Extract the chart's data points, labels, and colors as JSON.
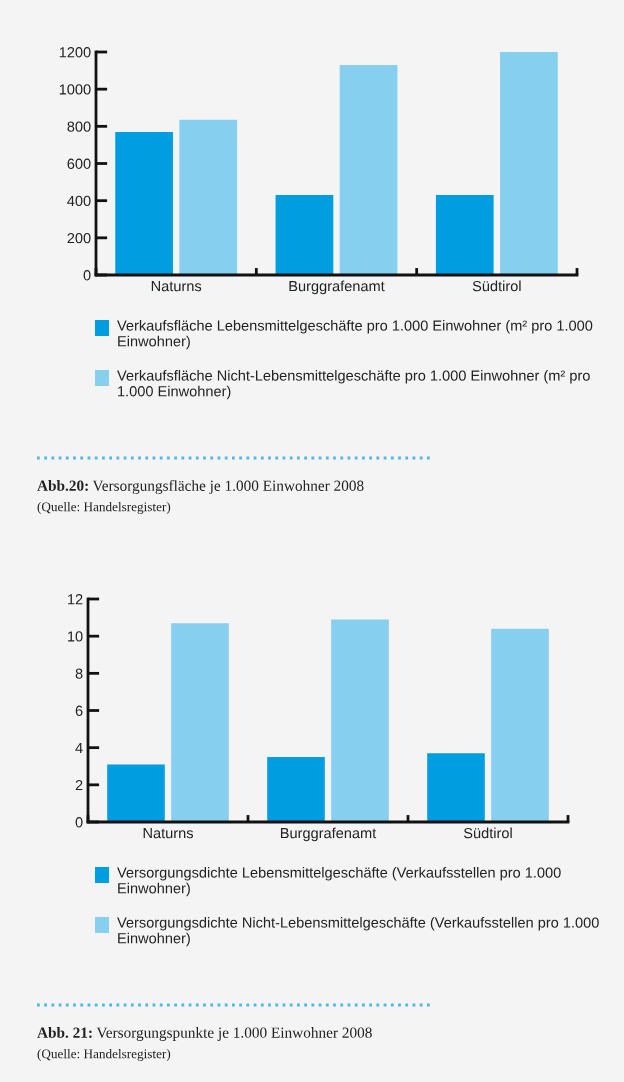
{
  "chart_data": [
    {
      "type": "bar",
      "categories": [
        "Naturns",
        "Burggrafenamt",
        "Südtirol"
      ],
      "series": [
        {
          "name": "Verkaufsfläche Lebensmittelgeschäfte pro 1.000 Einwohner (m² pro 1.000 Einwohner)",
          "color": "#009ee0",
          "values": [
            770,
            430,
            430
          ]
        },
        {
          "name": "Verkaufsfläche Nicht-Lebensmittelgeschäfte pro 1.000 Einwohner (m² pro 1.000 Einwohner)",
          "color": "#87cfef",
          "values": [
            835,
            1130,
            1200
          ]
        }
      ],
      "ylim": [
        0,
        1200
      ],
      "yticks": [
        0,
        200,
        400,
        600,
        800,
        1000,
        1200
      ],
      "grid": false,
      "legend": "bottom",
      "annotations": [
        "Abb.20: Versorgungsfläche je 1.000 Einwohner 2008",
        "(Quelle: Handelsregister)"
      ]
    },
    {
      "type": "bar",
      "categories": [
        "Naturns",
        "Burggrafenamt",
        "Südtirol"
      ],
      "series": [
        {
          "name": "Versorgungsdichte Lebensmittelgeschäfte (Verkaufsstellen pro 1.000 Einwohner)",
          "color": "#009ee0",
          "values": [
            3.1,
            3.5,
            3.7
          ]
        },
        {
          "name": "Versorgungsdichte Nicht-Lebensmittelgeschäfte (Verkaufsstellen pro 1.000 Einwohner)",
          "color": "#87cfef",
          "values": [
            10.7,
            10.9,
            10.4
          ]
        }
      ],
      "ylim": [
        0,
        12
      ],
      "yticks": [
        0,
        2,
        4,
        6,
        8,
        10,
        12
      ],
      "grid": false,
      "legend": "bottom",
      "annotations": [
        "Abb. 21: Versorgungspunkte je 1.000 Einwohner 2008",
        "(Quelle: Handelsregister)"
      ]
    }
  ]
}
